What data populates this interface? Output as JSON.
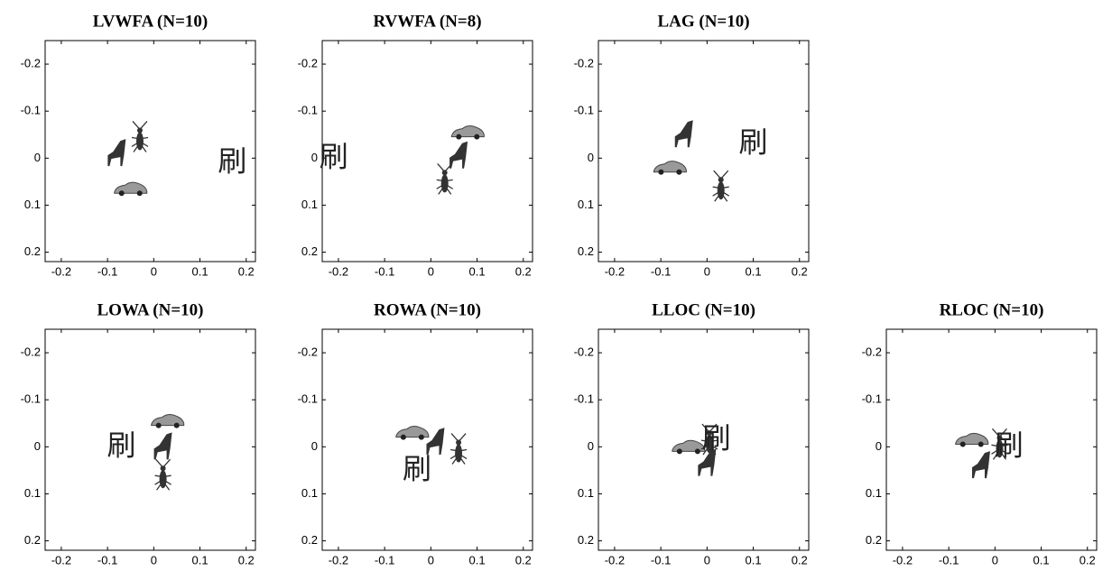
{
  "chart_data": [
    {
      "type": "scatter",
      "title": "LVWFA (N=10)",
      "xlim": [
        -0.235,
        0.22
      ],
      "ylim": [
        -0.25,
        0.22
      ],
      "y_inverted": true,
      "xticks": [
        -0.2,
        -0.1,
        0,
        0.1,
        0.2
      ],
      "yticks": [
        -0.2,
        -0.1,
        0,
        0.1,
        0.2
      ],
      "series": [
        {
          "marker": "insect",
          "x": [
            -0.03
          ],
          "values": [
            -0.04
          ]
        },
        {
          "marker": "chair",
          "x": [
            -0.08
          ],
          "values": [
            -0.01
          ]
        },
        {
          "marker": "car",
          "x": [
            -0.05
          ],
          "values": [
            0.065
          ]
        },
        {
          "marker": "text",
          "label": "刷",
          "x": [
            0.17
          ],
          "values": [
            0.01
          ]
        }
      ]
    },
    {
      "type": "scatter",
      "title": "RVWFA (N=8)",
      "xlim": [
        -0.235,
        0.22
      ],
      "ylim": [
        -0.25,
        0.22
      ],
      "y_inverted": true,
      "xticks": [
        -0.2,
        -0.1,
        0,
        0.1,
        0.2
      ],
      "yticks": [
        -0.2,
        -0.1,
        0,
        0.1,
        0.2
      ],
      "series": [
        {
          "marker": "car",
          "x": [
            0.08
          ],
          "values": [
            -0.055
          ]
        },
        {
          "marker": "chair",
          "x": [
            0.06
          ],
          "values": [
            -0.005
          ]
        },
        {
          "marker": "insect",
          "x": [
            0.03
          ],
          "values": [
            0.05
          ]
        },
        {
          "marker": "text",
          "label": "刷",
          "x": [
            -0.21
          ],
          "values": [
            0.0
          ]
        }
      ]
    },
    {
      "type": "scatter",
      "title": "LAG (N=10)",
      "xlim": [
        -0.235,
        0.22
      ],
      "ylim": [
        -0.25,
        0.22
      ],
      "y_inverted": true,
      "xticks": [
        -0.2,
        -0.1,
        0,
        0.1,
        0.2
      ],
      "yticks": [
        -0.2,
        -0.1,
        0,
        0.1,
        0.2
      ],
      "series": [
        {
          "marker": "chair",
          "x": [
            -0.05
          ],
          "values": [
            -0.05
          ]
        },
        {
          "marker": "car",
          "x": [
            -0.08
          ],
          "values": [
            0.02
          ]
        },
        {
          "marker": "insect",
          "x": [
            0.03
          ],
          "values": [
            0.065
          ]
        },
        {
          "marker": "text",
          "label": "刷",
          "x": [
            0.1
          ],
          "values": [
            -0.03
          ]
        }
      ]
    },
    {
      "type": "scatter",
      "title": "LOWA (N=10)",
      "xlim": [
        -0.235,
        0.22
      ],
      "ylim": [
        -0.25,
        0.22
      ],
      "y_inverted": true,
      "xticks": [
        -0.2,
        -0.1,
        0,
        0.1,
        0.2
      ],
      "yticks": [
        -0.2,
        -0.1,
        0,
        0.1,
        0.2
      ],
      "series": [
        {
          "marker": "car",
          "x": [
            0.03
          ],
          "values": [
            -0.055
          ]
        },
        {
          "marker": "chair",
          "x": [
            0.02
          ],
          "values": [
            0.0
          ]
        },
        {
          "marker": "insect",
          "x": [
            0.02
          ],
          "values": [
            0.065
          ]
        },
        {
          "marker": "text",
          "label": "刷",
          "x": [
            -0.07
          ],
          "values": [
            0.0
          ]
        }
      ]
    },
    {
      "type": "scatter",
      "title": "ROWA (N=10)",
      "xlim": [
        -0.235,
        0.22
      ],
      "ylim": [
        -0.25,
        0.22
      ],
      "y_inverted": true,
      "xticks": [
        -0.2,
        -0.1,
        0,
        0.1,
        0.2
      ],
      "yticks": [
        -0.2,
        -0.1,
        0,
        0.1,
        0.2
      ],
      "series": [
        {
          "marker": "car",
          "x": [
            -0.04
          ],
          "values": [
            -0.03
          ]
        },
        {
          "marker": "chair",
          "x": [
            0.01
          ],
          "values": [
            -0.01
          ]
        },
        {
          "marker": "insect",
          "x": [
            0.06
          ],
          "values": [
            0.01
          ]
        },
        {
          "marker": "text",
          "label": "刷",
          "x": [
            -0.03
          ],
          "values": [
            0.05
          ]
        }
      ]
    },
    {
      "type": "scatter",
      "title": "LLOC (N=10)",
      "xlim": [
        -0.235,
        0.22
      ],
      "ylim": [
        -0.25,
        0.22
      ],
      "y_inverted": true,
      "xticks": [
        -0.2,
        -0.1,
        0,
        0.1,
        0.2
      ],
      "yticks": [
        -0.2,
        -0.1,
        0,
        0.1,
        0.2
      ],
      "series": [
        {
          "marker": "car",
          "x": [
            -0.04
          ],
          "values": [
            0.0
          ]
        },
        {
          "marker": "chair",
          "x": [
            0.0
          ],
          "values": [
            0.035
          ]
        },
        {
          "marker": "insect",
          "x": [
            0.005
          ],
          "values": [
            -0.01
          ]
        },
        {
          "marker": "text",
          "label": "刷",
          "x": [
            0.02
          ],
          "values": [
            -0.015
          ]
        }
      ]
    },
    {
      "type": "scatter",
      "title": "RLOC (N=10)",
      "xlim": [
        -0.235,
        0.22
      ],
      "ylim": [
        -0.25,
        0.22
      ],
      "y_inverted": true,
      "xticks": [
        -0.2,
        -0.1,
        0,
        0.1,
        0.2
      ],
      "yticks": [
        -0.2,
        -0.1,
        0,
        0.1,
        0.2
      ],
      "series": [
        {
          "marker": "car",
          "x": [
            -0.05
          ],
          "values": [
            -0.015
          ]
        },
        {
          "marker": "chair",
          "x": [
            -0.03
          ],
          "values": [
            0.04
          ]
        },
        {
          "marker": "insect",
          "x": [
            0.01
          ],
          "values": [
            0.0
          ]
        },
        {
          "marker": "text",
          "label": "刷",
          "x": [
            0.03
          ],
          "values": [
            0.0
          ]
        }
      ]
    }
  ]
}
